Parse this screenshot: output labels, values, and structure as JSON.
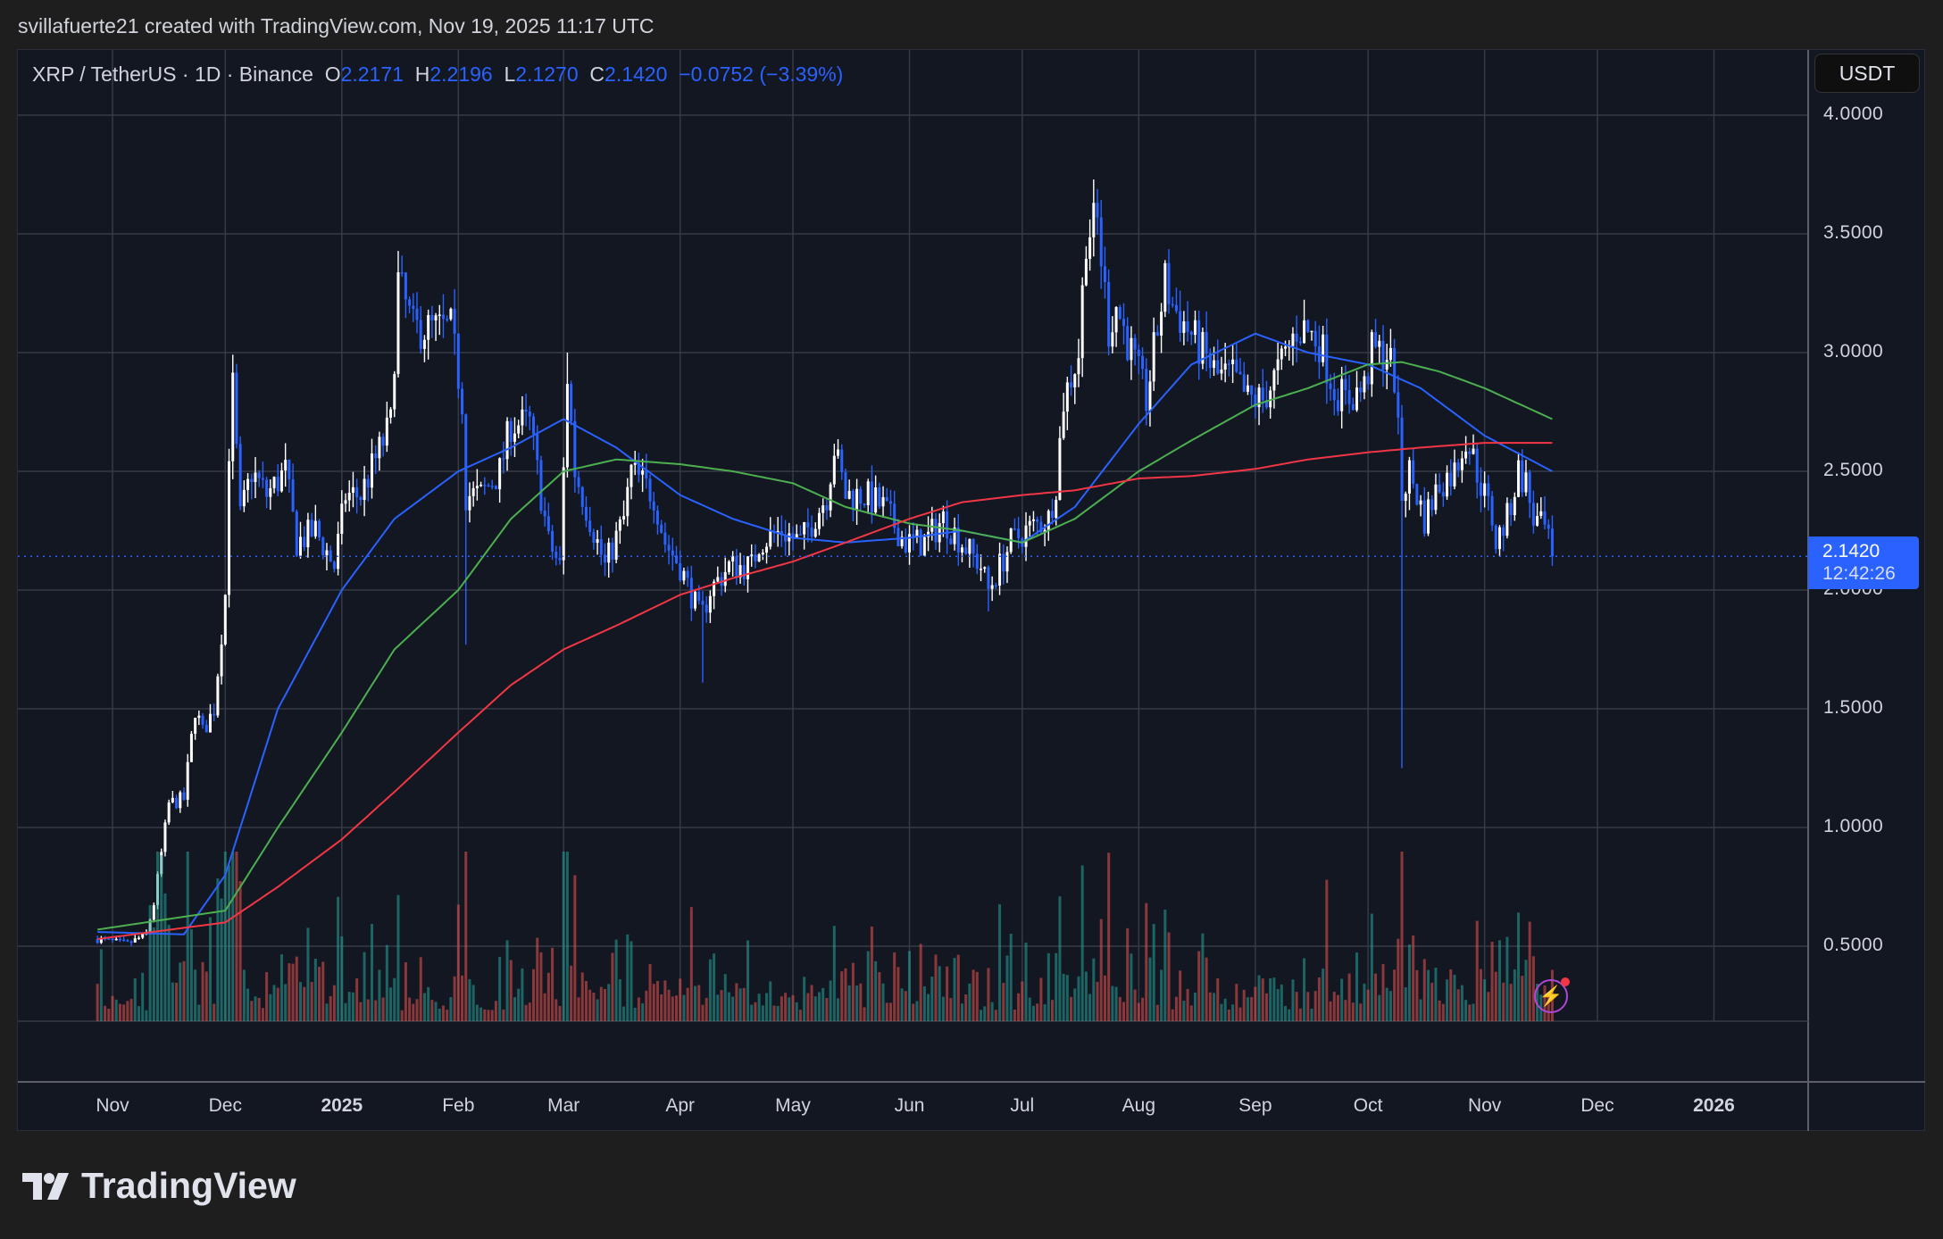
{
  "credit": "svillafuerte21 created with TradingView.com, Nov 19, 2025 11:17 UTC",
  "legend": {
    "symbol": "XRP / TetherUS · 1D · Binance",
    "o_label": "O",
    "open": "2.2171",
    "h_label": "H",
    "high": "2.2196",
    "l_label": "L",
    "low": "2.1270",
    "c_label": "C",
    "close": "2.1420",
    "change": "−0.0752 (−3.39%)"
  },
  "currency_button": "USDT",
  "last_price": {
    "value": "2.1420",
    "countdown": "12:42:26"
  },
  "logo_text": "TradingView",
  "colors": {
    "background": "#131722",
    "up": "#ffffff",
    "down": "#2962ff",
    "ma_fast": "#2962ff",
    "ma_mid": "#4caf50",
    "ma_slow": "#f23645",
    "vol_up": "#26a69a",
    "vol_down": "#ef5350"
  },
  "chart_data": {
    "type": "candlestick",
    "title": "XRP / TetherUS · 1D · Binance",
    "ylim": [
      0.0,
      4.2
    ],
    "y_ticks": [
      "4.0000",
      "3.5000",
      "3.0000",
      "2.5000",
      "2.0000",
      "1.5000",
      "1.0000",
      "0.5000"
    ],
    "y_tick_values": [
      4.0,
      3.5,
      3.0,
      2.5,
      2.0,
      1.5,
      1.0,
      0.5
    ],
    "x_ticks": [
      {
        "label": "Nov",
        "date": "2024-11-01"
      },
      {
        "label": "Dec",
        "date": "2024-12-01"
      },
      {
        "label": "2025",
        "date": "2025-01-01",
        "bold": true
      },
      {
        "label": "Feb",
        "date": "2025-02-01"
      },
      {
        "label": "Mar",
        "date": "2025-03-01"
      },
      {
        "label": "Apr",
        "date": "2025-04-01"
      },
      {
        "label": "May",
        "date": "2025-05-01"
      },
      {
        "label": "Jun",
        "date": "2025-06-01"
      },
      {
        "label": "Jul",
        "date": "2025-07-01"
      },
      {
        "label": "Aug",
        "date": "2025-08-01"
      },
      {
        "label": "Sep",
        "date": "2025-09-01"
      },
      {
        "label": "Oct",
        "date": "2025-10-01"
      },
      {
        "label": "Nov",
        "date": "2025-11-01"
      },
      {
        "label": "Dec",
        "date": "2025-12-01"
      },
      {
        "label": "2026",
        "date": "2026-01-01",
        "bold": true
      }
    ],
    "grid": true,
    "approx_closes": [
      [
        "2024-10-28",
        0.53
      ],
      [
        "2024-11-05",
        0.51
      ],
      [
        "2024-11-10",
        0.55
      ],
      [
        "2024-11-12",
        0.68
      ],
      [
        "2024-11-16",
        1.1
      ],
      [
        "2024-11-20",
        1.12
      ],
      [
        "2024-11-23",
        1.5
      ],
      [
        "2024-11-25",
        1.4
      ],
      [
        "2024-11-28",
        1.5
      ],
      [
        "2024-12-01",
        1.98
      ],
      [
        "2024-12-02",
        2.6
      ],
      [
        "2024-12-03",
        2.85
      ],
      [
        "2024-12-05",
        2.3
      ],
      [
        "2024-12-08",
        2.5
      ],
      [
        "2024-12-12",
        2.4
      ],
      [
        "2024-12-17",
        2.5
      ],
      [
        "2024-12-20",
        2.2
      ],
      [
        "2024-12-25",
        2.25
      ],
      [
        "2024-12-30",
        2.1
      ],
      [
        "2025-01-02",
        2.4
      ],
      [
        "2025-01-06",
        2.4
      ],
      [
        "2025-01-10",
        2.55
      ],
      [
        "2025-01-14",
        2.7
      ],
      [
        "2025-01-16",
        3.3
      ],
      [
        "2025-01-18",
        3.2
      ],
      [
        "2025-01-20",
        3.1
      ],
      [
        "2025-01-25",
        3.1
      ],
      [
        "2025-01-30",
        3.1
      ],
      [
        "2025-02-02",
        2.8
      ],
      [
        "2025-02-03",
        2.4
      ],
      [
        "2025-02-07",
        2.4
      ],
      [
        "2025-02-12",
        2.5
      ],
      [
        "2025-02-15",
        2.7
      ],
      [
        "2025-02-20",
        2.7
      ],
      [
        "2025-02-25",
        2.2
      ],
      [
        "2025-02-28",
        2.1
      ],
      [
        "2025-03-02",
        2.9
      ],
      [
        "2025-03-04",
        2.5
      ],
      [
        "2025-03-10",
        2.2
      ],
      [
        "2025-03-12",
        2.1
      ],
      [
        "2025-03-17",
        2.3
      ],
      [
        "2025-03-19",
        2.5
      ],
      [
        "2025-03-25",
        2.4
      ],
      [
        "2025-03-28",
        2.2
      ],
      [
        "2025-04-01",
        2.1
      ],
      [
        "2025-04-06",
        1.9
      ],
      [
        "2025-04-07",
        1.9
      ],
      [
        "2025-04-09",
        2.0
      ],
      [
        "2025-04-14",
        2.1
      ],
      [
        "2025-04-20",
        2.1
      ],
      [
        "2025-04-22",
        2.2
      ],
      [
        "2025-04-28",
        2.25
      ],
      [
        "2025-05-03",
        2.2
      ],
      [
        "2025-05-10",
        2.4
      ],
      [
        "2025-05-12",
        2.6
      ],
      [
        "2025-05-15",
        2.4
      ],
      [
        "2025-05-20",
        2.4
      ],
      [
        "2025-05-25",
        2.35
      ],
      [
        "2025-05-31",
        2.2
      ],
      [
        "2025-06-05",
        2.2
      ],
      [
        "2025-06-10",
        2.3
      ],
      [
        "2025-06-15",
        2.2
      ],
      [
        "2025-06-20",
        2.1
      ],
      [
        "2025-06-22",
        2.0
      ],
      [
        "2025-06-28",
        2.2
      ],
      [
        "2025-07-02",
        2.25
      ],
      [
        "2025-07-08",
        2.3
      ],
      [
        "2025-07-10",
        2.45
      ],
      [
        "2025-07-12",
        2.8
      ],
      [
        "2025-07-14",
        2.9
      ],
      [
        "2025-07-16",
        3.0
      ],
      [
        "2025-07-18",
        3.5
      ],
      [
        "2025-07-21",
        3.55
      ],
      [
        "2025-07-24",
        3.1
      ],
      [
        "2025-07-26",
        3.2
      ],
      [
        "2025-07-30",
        3.0
      ],
      [
        "2025-08-03",
        2.8
      ],
      [
        "2025-08-08",
        3.3
      ],
      [
        "2025-08-10",
        3.2
      ],
      [
        "2025-08-14",
        3.1
      ],
      [
        "2025-08-18",
        3.0
      ],
      [
        "2025-08-22",
        2.9
      ],
      [
        "2025-08-26",
        2.9
      ],
      [
        "2025-08-30",
        2.8
      ],
      [
        "2025-09-03",
        2.8
      ],
      [
        "2025-09-08",
        2.95
      ],
      [
        "2025-09-12",
        3.1
      ],
      [
        "2025-09-14",
        3.1
      ],
      [
        "2025-09-18",
        3.05
      ],
      [
        "2025-09-22",
        2.85
      ],
      [
        "2025-09-25",
        2.8
      ],
      [
        "2025-09-30",
        2.85
      ],
      [
        "2025-10-02",
        3.0
      ],
      [
        "2025-10-06",
        3.0
      ],
      [
        "2025-10-08",
        2.9
      ],
      [
        "2025-10-10",
        2.4
      ],
      [
        "2025-10-12",
        2.5
      ],
      [
        "2025-10-16",
        2.3
      ],
      [
        "2025-10-20",
        2.45
      ],
      [
        "2025-10-24",
        2.5
      ],
      [
        "2025-10-27",
        2.65
      ],
      [
        "2025-10-30",
        2.5
      ],
      [
        "2025-11-03",
        2.3
      ],
      [
        "2025-11-04",
        2.2
      ],
      [
        "2025-11-07",
        2.3
      ],
      [
        "2025-11-10",
        2.5
      ],
      [
        "2025-11-12",
        2.45
      ],
      [
        "2025-11-14",
        2.3
      ],
      [
        "2025-11-17",
        2.25
      ],
      [
        "2025-11-19",
        2.142
      ]
    ],
    "notable_wicks": [
      [
        "2025-02-03",
        1.77
      ],
      [
        "2025-04-07",
        1.61
      ],
      [
        "2025-06-22",
        1.91
      ],
      [
        "2025-07-21",
        3.65
      ],
      [
        "2025-10-10",
        1.25
      ],
      [
        "2025-03-02",
        3.0
      ],
      [
        "2025-01-16",
        3.4
      ]
    ],
    "moving_averages": [
      {
        "color": "#2962ff",
        "points": [
          [
            "2024-10-28",
            0.56
          ],
          [
            "2024-11-20",
            0.55
          ],
          [
            "2024-12-01",
            0.8
          ],
          [
            "2024-12-15",
            1.5
          ],
          [
            "2025-01-01",
            2.0
          ],
          [
            "2025-01-15",
            2.3
          ],
          [
            "2025-02-01",
            2.5
          ],
          [
            "2025-02-15",
            2.6
          ],
          [
            "2025-03-01",
            2.72
          ],
          [
            "2025-03-15",
            2.6
          ],
          [
            "2025-04-01",
            2.4
          ],
          [
            "2025-04-15",
            2.3
          ],
          [
            "2025-05-01",
            2.22
          ],
          [
            "2025-05-15",
            2.2
          ],
          [
            "2025-06-01",
            2.22
          ],
          [
            "2025-06-15",
            2.25
          ],
          [
            "2025-07-01",
            2.2
          ],
          [
            "2025-07-15",
            2.35
          ],
          [
            "2025-08-01",
            2.7
          ],
          [
            "2025-08-15",
            2.95
          ],
          [
            "2025-09-01",
            3.08
          ],
          [
            "2025-09-15",
            3.0
          ],
          [
            "2025-10-01",
            2.95
          ],
          [
            "2025-10-15",
            2.85
          ],
          [
            "2025-11-01",
            2.65
          ],
          [
            "2025-11-19",
            2.5
          ]
        ]
      },
      {
        "color": "#4caf50",
        "points": [
          [
            "2024-10-28",
            0.57
          ],
          [
            "2024-12-01",
            0.65
          ],
          [
            "2024-12-15",
            1.0
          ],
          [
            "2025-01-01",
            1.4
          ],
          [
            "2025-01-15",
            1.75
          ],
          [
            "2025-02-01",
            2.0
          ],
          [
            "2025-02-15",
            2.3
          ],
          [
            "2025-03-01",
            2.5
          ],
          [
            "2025-03-15",
            2.55
          ],
          [
            "2025-04-01",
            2.53
          ],
          [
            "2025-04-15",
            2.5
          ],
          [
            "2025-05-01",
            2.45
          ],
          [
            "2025-05-15",
            2.35
          ],
          [
            "2025-06-01",
            2.28
          ],
          [
            "2025-06-15",
            2.25
          ],
          [
            "2025-07-01",
            2.2
          ],
          [
            "2025-07-15",
            2.3
          ],
          [
            "2025-08-01",
            2.5
          ],
          [
            "2025-08-15",
            2.63
          ],
          [
            "2025-09-01",
            2.78
          ],
          [
            "2025-09-15",
            2.85
          ],
          [
            "2025-10-01",
            2.95
          ],
          [
            "2025-10-10",
            2.96
          ],
          [
            "2025-10-20",
            2.92
          ],
          [
            "2025-11-01",
            2.85
          ],
          [
            "2025-11-19",
            2.72
          ]
        ]
      },
      {
        "color": "#f23645",
        "points": [
          [
            "2024-10-28",
            0.53
          ],
          [
            "2024-12-01",
            0.6
          ],
          [
            "2024-12-15",
            0.75
          ],
          [
            "2025-01-01",
            0.95
          ],
          [
            "2025-01-15",
            1.15
          ],
          [
            "2025-02-01",
            1.4
          ],
          [
            "2025-02-15",
            1.6
          ],
          [
            "2025-03-01",
            1.75
          ],
          [
            "2025-03-15",
            1.85
          ],
          [
            "2025-04-01",
            1.98
          ],
          [
            "2025-04-15",
            2.05
          ],
          [
            "2025-05-01",
            2.12
          ],
          [
            "2025-05-15",
            2.2
          ],
          [
            "2025-06-01",
            2.3
          ],
          [
            "2025-06-15",
            2.37
          ],
          [
            "2025-07-01",
            2.4
          ],
          [
            "2025-07-15",
            2.42
          ],
          [
            "2025-08-01",
            2.47
          ],
          [
            "2025-08-15",
            2.48
          ],
          [
            "2025-09-01",
            2.51
          ],
          [
            "2025-09-15",
            2.55
          ],
          [
            "2025-10-01",
            2.58
          ],
          [
            "2025-10-15",
            2.6
          ],
          [
            "2025-11-01",
            2.62
          ],
          [
            "2025-11-19",
            2.62
          ]
        ]
      }
    ]
  }
}
